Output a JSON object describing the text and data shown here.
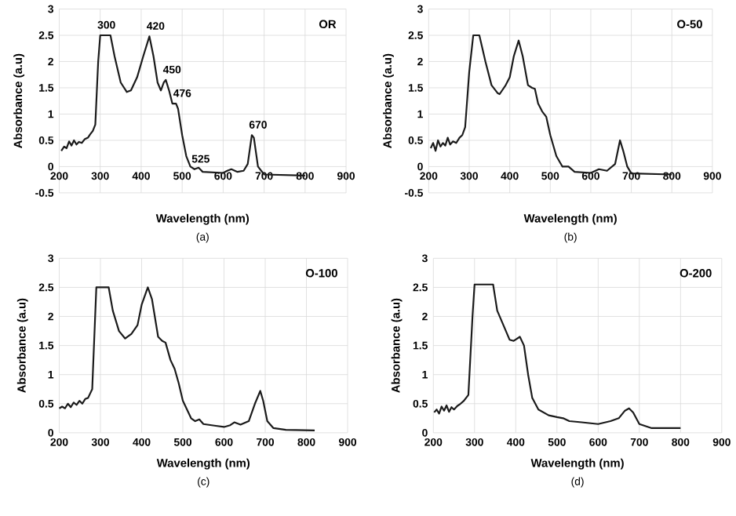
{
  "chart_data": [
    {
      "type": "line",
      "title": "OR",
      "xlabel": "Wavelength (nm)",
      "ylabel": "Absorbance (a.u)",
      "color": "#1a1a1a",
      "grid": true,
      "xlim": [
        200,
        900
      ],
      "xticks": [
        200,
        300,
        400,
        500,
        600,
        700,
        800,
        900
      ],
      "ylim": [
        -0.5,
        3
      ],
      "yticks": [
        -0.5,
        0,
        0.5,
        1,
        1.5,
        2,
        2.5,
        3
      ],
      "x": [
        205,
        212,
        218,
        224,
        230,
        236,
        242,
        248,
        255,
        262,
        270,
        276,
        282,
        288,
        295,
        300,
        325,
        335,
        350,
        365,
        375,
        390,
        405,
        420,
        430,
        440,
        448,
        455,
        460,
        468,
        476,
        485,
        490,
        500,
        510,
        520,
        530,
        540,
        550,
        600,
        610,
        620,
        635,
        650,
        660,
        670,
        675,
        685,
        700,
        800
      ],
      "values": [
        0.3,
        0.38,
        0.35,
        0.48,
        0.4,
        0.5,
        0.42,
        0.47,
        0.45,
        0.52,
        0.55,
        0.62,
        0.68,
        0.8,
        2.0,
        2.5,
        2.5,
        2.1,
        1.6,
        1.42,
        1.45,
        1.7,
        2.1,
        2.48,
        2.1,
        1.6,
        1.45,
        1.6,
        1.65,
        1.45,
        1.2,
        1.2,
        1.1,
        0.6,
        0.2,
        0.0,
        -0.05,
        -0.02,
        -0.1,
        -0.12,
        -0.08,
        -0.05,
        -0.1,
        -0.08,
        0.05,
        0.6,
        0.55,
        0.0,
        -0.15,
        -0.17
      ],
      "annotations": [
        "(a)",
        {
          "text": "300",
          "x": 300,
          "y": 2.5
        },
        {
          "text": "420",
          "x": 420,
          "y": 2.48
        },
        {
          "text": "450",
          "x": 460,
          "y": 1.65
        },
        {
          "text": "476",
          "x": 485,
          "y": 1.2
        },
        {
          "text": "525",
          "x": 530,
          "y": -0.05
        },
        {
          "text": "670",
          "x": 670,
          "y": 0.6
        }
      ]
    },
    {
      "type": "line",
      "title": "O-50",
      "xlabel": "Wavelength (nm)",
      "ylabel": "Absorbance (a.u)",
      "color": "#1a1a1a",
      "grid": true,
      "xlim": [
        200,
        900
      ],
      "xticks": [
        200,
        300,
        400,
        500,
        600,
        700,
        800,
        900
      ],
      "ylim": [
        -0.5,
        3
      ],
      "yticks": [
        -0.5,
        0,
        0.5,
        1,
        1.5,
        2,
        2.5,
        3
      ],
      "x": [
        205,
        211,
        217,
        223,
        229,
        235,
        241,
        247,
        253,
        260,
        268,
        276,
        283,
        290,
        300,
        310,
        325,
        340,
        355,
        370,
        375,
        390,
        400,
        410,
        422,
        432,
        445,
        455,
        462,
        470,
        480,
        490,
        500,
        515,
        530,
        545,
        560,
        600,
        620,
        640,
        660,
        672,
        680,
        690,
        700,
        800
      ],
      "values": [
        0.35,
        0.45,
        0.3,
        0.5,
        0.38,
        0.45,
        0.4,
        0.55,
        0.42,
        0.48,
        0.45,
        0.55,
        0.6,
        0.75,
        1.8,
        2.5,
        2.5,
        2.0,
        1.55,
        1.4,
        1.38,
        1.55,
        1.7,
        2.1,
        2.4,
        2.1,
        1.55,
        1.5,
        1.48,
        1.2,
        1.05,
        0.95,
        0.6,
        0.2,
        0.0,
        0.0,
        -0.1,
        -0.12,
        -0.05,
        -0.08,
        0.05,
        0.5,
        0.3,
        0.0,
        -0.13,
        -0.15
      ],
      "annotations": [
        "(b)"
      ]
    },
    {
      "type": "line",
      "title": "O-100",
      "xlabel": "Wavelength (nm)",
      "ylabel": "Absorbance (a.u)",
      "color": "#1a1a1a",
      "grid": true,
      "xlim": [
        200,
        900
      ],
      "xticks": [
        200,
        300,
        400,
        500,
        600,
        700,
        800,
        900
      ],
      "ylim": [
        0,
        3
      ],
      "yticks": [
        0,
        0.5,
        1,
        1.5,
        2,
        2.5,
        3
      ],
      "x": [
        200,
        207,
        214,
        221,
        228,
        235,
        242,
        249,
        256,
        263,
        270,
        280,
        290,
        320,
        330,
        345,
        360,
        375,
        390,
        400,
        415,
        425,
        440,
        450,
        458,
        470,
        480,
        490,
        500,
        520,
        530,
        540,
        550,
        580,
        600,
        615,
        625,
        640,
        660,
        675,
        688,
        695,
        705,
        720,
        750,
        820
      ],
      "values": [
        0.42,
        0.45,
        0.42,
        0.5,
        0.44,
        0.52,
        0.48,
        0.55,
        0.5,
        0.58,
        0.6,
        0.75,
        2.5,
        2.5,
        2.1,
        1.75,
        1.62,
        1.7,
        1.85,
        2.2,
        2.5,
        2.3,
        1.65,
        1.58,
        1.55,
        1.25,
        1.1,
        0.85,
        0.55,
        0.25,
        0.2,
        0.23,
        0.15,
        0.12,
        0.1,
        0.13,
        0.18,
        0.14,
        0.2,
        0.5,
        0.72,
        0.55,
        0.2,
        0.08,
        0.05,
        0.04
      ],
      "annotations": [
        "(c)"
      ]
    },
    {
      "type": "line",
      "title": "O-200",
      "xlabel": "Wavelength (nm)",
      "ylabel": "Absorbance (a.u)",
      "color": "#1a1a1a",
      "grid": true,
      "xlim": [
        200,
        900
      ],
      "xticks": [
        200,
        300,
        400,
        500,
        600,
        700,
        800,
        900
      ],
      "ylim": [
        0,
        3
      ],
      "yticks": [
        0,
        0.5,
        1,
        1.5,
        2,
        2.5,
        3
      ],
      "x": [
        202,
        208,
        214,
        220,
        226,
        232,
        238,
        244,
        250,
        258,
        266,
        274,
        285,
        295,
        300,
        345,
        355,
        370,
        385,
        395,
        410,
        420,
        430,
        440,
        455,
        480,
        500,
        515,
        530,
        560,
        600,
        630,
        650,
        665,
        675,
        685,
        700,
        730,
        800
      ],
      "values": [
        0.35,
        0.4,
        0.33,
        0.45,
        0.38,
        0.47,
        0.36,
        0.44,
        0.4,
        0.46,
        0.5,
        0.55,
        0.65,
        2.0,
        2.55,
        2.55,
        2.1,
        1.85,
        1.6,
        1.58,
        1.65,
        1.5,
        1.0,
        0.6,
        0.4,
        0.3,
        0.27,
        0.25,
        0.2,
        0.18,
        0.15,
        0.2,
        0.25,
        0.38,
        0.42,
        0.35,
        0.15,
        0.08,
        0.08
      ],
      "annotations": [
        "(d)"
      ]
    }
  ]
}
